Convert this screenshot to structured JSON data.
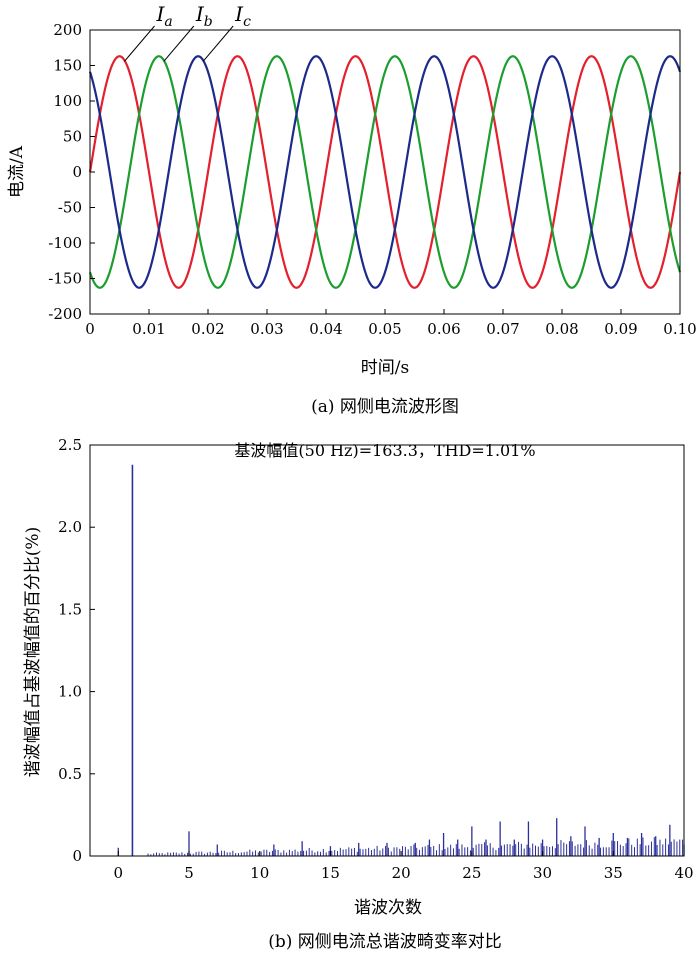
{
  "chart_data": [
    {
      "type": "line",
      "caption": "(a) 网侧电流波形图",
      "xlabel": "时间/s",
      "ylabel": "电流/A",
      "xlim": [
        0,
        0.1
      ],
      "ylim": [
        -200,
        200
      ],
      "xticks": [
        "0",
        "0.01",
        "0.02",
        "0.03",
        "0.04",
        "0.05",
        "0.06",
        "0.07",
        "0.08",
        "0.09",
        "0.10"
      ],
      "yticks": [
        "200",
        "150",
        "100",
        "50",
        "0",
        "-50",
        "-100",
        "-150",
        "-200"
      ],
      "grid": false,
      "frequency_hz": 50,
      "series": [
        {
          "name": "Ia",
          "letter": "I",
          "sub": "a",
          "color": "#e3202c",
          "amplitude": 163,
          "phase_deg": 0
        },
        {
          "name": "Ib",
          "letter": "I",
          "sub": "b",
          "color": "#1c9e2e",
          "amplitude": 163,
          "phase_deg": -120
        },
        {
          "name": "Ic",
          "letter": "I",
          "sub": "c",
          "color": "#1c2a8c",
          "amplitude": 163,
          "phase_deg": 120
        }
      ]
    },
    {
      "type": "bar",
      "caption": "(b) 网侧电流总谐波畸变率对比",
      "title": "基波幅值(50 Hz)=163.3，THD=1.01%",
      "xlabel": "谐波次数",
      "ylabel": "谐波幅值占基波幅值的百分比(%)",
      "xlim": [
        -2,
        40
      ],
      "ylim": [
        0,
        2.5
      ],
      "xticks": [
        "0",
        "5",
        "10",
        "15",
        "20",
        "25",
        "30",
        "35",
        "40"
      ],
      "yticks": [
        "2.5",
        "2.0",
        "1.5",
        "1.0",
        "0.5",
        "0"
      ],
      "grid": false,
      "color": "#2b2f9a",
      "major_bars": [
        {
          "x": 0,
          "y": 0.05
        },
        {
          "x": 1,
          "y": 2.38
        },
        {
          "x": 5,
          "y": 0.15
        },
        {
          "x": 7,
          "y": 0.07
        },
        {
          "x": 11,
          "y": 0.07
        },
        {
          "x": 13,
          "y": 0.09
        },
        {
          "x": 15,
          "y": 0.06
        },
        {
          "x": 17,
          "y": 0.08
        },
        {
          "x": 19,
          "y": 0.08
        },
        {
          "x": 21,
          "y": 0.08
        },
        {
          "x": 22,
          "y": 0.1
        },
        {
          "x": 23,
          "y": 0.14
        },
        {
          "x": 24,
          "y": 0.1
        },
        {
          "x": 25,
          "y": 0.18
        },
        {
          "x": 26,
          "y": 0.1
        },
        {
          "x": 27,
          "y": 0.21
        },
        {
          "x": 28,
          "y": 0.1
        },
        {
          "x": 29,
          "y": 0.21
        },
        {
          "x": 30,
          "y": 0.1
        },
        {
          "x": 31,
          "y": 0.23
        },
        {
          "x": 32,
          "y": 0.12
        },
        {
          "x": 33,
          "y": 0.18
        },
        {
          "x": 34,
          "y": 0.11
        },
        {
          "x": 35,
          "y": 0.14
        },
        {
          "x": 36,
          "y": 0.11
        },
        {
          "x": 37,
          "y": 0.14
        },
        {
          "x": 38,
          "y": 0.12
        },
        {
          "x": 39,
          "y": 0.19
        },
        {
          "x": 40,
          "y": 0.07
        }
      ]
    }
  ]
}
